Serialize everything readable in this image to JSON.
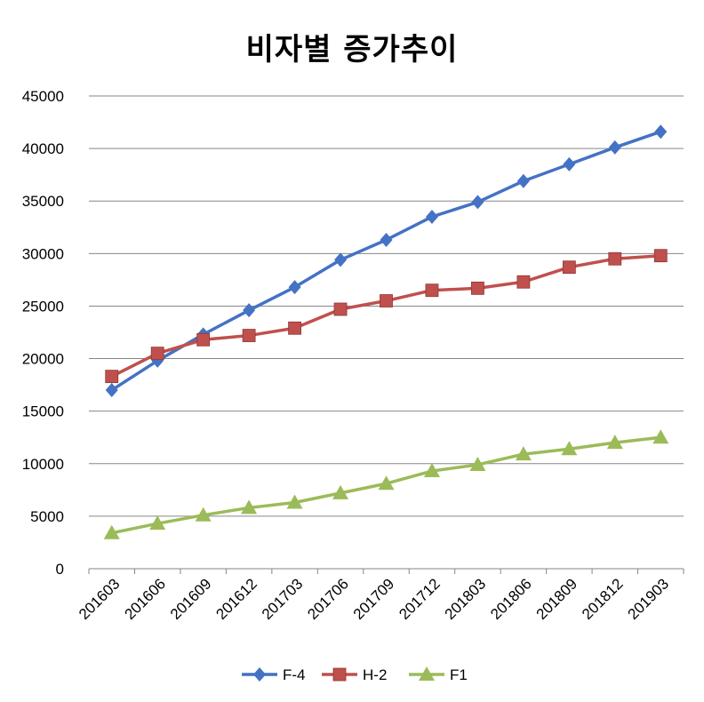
{
  "chart_data": {
    "type": "line",
    "title": "비자별 증가추이",
    "xlabel": "",
    "ylabel": "",
    "ylim": [
      0,
      45000
    ],
    "yticks": [
      "0",
      "5000",
      "10000",
      "15000",
      "20000",
      "25000",
      "30000",
      "35000",
      "40000",
      "45000"
    ],
    "grid": true,
    "legend_position": "bottom",
    "categories": [
      "201603",
      "201606",
      "201609",
      "201612",
      "201703",
      "201706",
      "201709",
      "201712",
      "201803",
      "201806",
      "201809",
      "201812",
      "201903"
    ],
    "series": [
      {
        "name": "F-4",
        "color": "#4472C4",
        "marker": "diamond",
        "values": [
          17000,
          19800,
          22300,
          24600,
          26800,
          29400,
          31300,
          33500,
          34900,
          36900,
          38500,
          40100,
          41600
        ]
      },
      {
        "name": "H-2",
        "color": "#C0504D",
        "marker": "square",
        "values": [
          18300,
          20500,
          21800,
          22200,
          22900,
          24700,
          25500,
          26500,
          26700,
          27300,
          28700,
          29500,
          29800
        ]
      },
      {
        "name": "F1",
        "color": "#9BBB59",
        "marker": "triangle",
        "values": [
          3400,
          4300,
          5100,
          5800,
          6300,
          7200,
          8100,
          9300,
          9900,
          10900,
          11400,
          12000,
          12500
        ]
      }
    ]
  }
}
